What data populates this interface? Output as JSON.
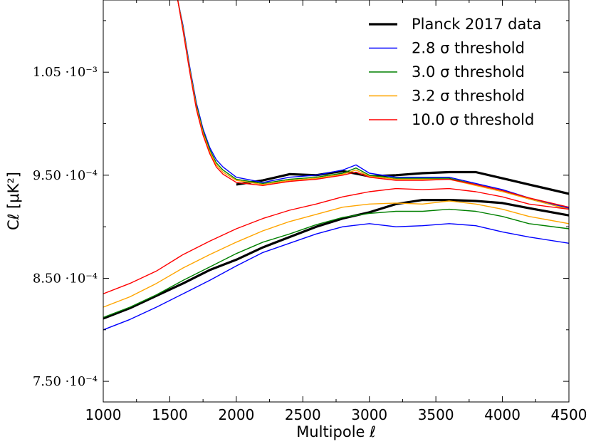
{
  "chart_data": {
    "type": "line",
    "xlabel": "Multipole ℓ",
    "ylabel": "Cℓ [μK²]",
    "xlim": [
      1000,
      4500
    ],
    "ylim": [
      0.00073,
      0.00112
    ],
    "xticks": [
      1000,
      1500,
      2000,
      2500,
      3000,
      3500,
      4000,
      4500
    ],
    "xtick_labels": [
      "1000",
      "1500",
      "2000",
      "2500",
      "3000",
      "3500",
      "4000",
      "4500"
    ],
    "yticks": [
      0.00075,
      0.00085,
      0.00095,
      0.00105
    ],
    "ytick_labels": [
      "7.50 ·10⁻⁴",
      "8.50 ·10⁻⁴",
      "9.50 ·10⁻⁴",
      "1.05 ·10⁻³"
    ],
    "legend_position": "top-right",
    "series": [
      {
        "name": "Planck 2017 data",
        "color": "#000000",
        "width": 3.2,
        "x": [
          2000,
          2200,
          2400,
          2600,
          2800,
          3000,
          3200,
          3400,
          3600,
          3800,
          4000,
          4200,
          4500
        ],
        "y": [
          0.000941,
          0.000945,
          0.000951,
          0.00095,
          0.000954,
          0.000949,
          0.00095,
          0.000952,
          0.000953,
          0.000953,
          0.000947,
          0.000941,
          0.000932
        ]
      },
      {
        "name": "",
        "color": "#000000",
        "width": 3.2,
        "x": [
          1000,
          1200,
          1400,
          1600,
          1800,
          2000,
          2200,
          2400,
          2600,
          2800,
          3000,
          3200,
          3400,
          3600,
          3800,
          4000,
          4200,
          4500
        ],
        "y": [
          0.000811,
          0.000821,
          0.000833,
          0.000845,
          0.000858,
          0.000868,
          0.00088,
          0.00089,
          0.0009,
          0.000908,
          0.000914,
          0.000922,
          0.000926,
          0.000926,
          0.000925,
          0.000923,
          0.000918,
          0.000911
        ]
      },
      {
        "name": "2.8 σ threshold",
        "color": "#0000ff",
        "width": 1.4,
        "x": [
          1560,
          1600,
          1650,
          1700,
          1750,
          1800,
          1850,
          1900,
          2000,
          2200,
          2400,
          2600,
          2800,
          2900,
          3000,
          3200,
          3400,
          3600,
          3800,
          4000,
          4200,
          4500
        ],
        "y": [
          0.00112,
          0.001095,
          0.001055,
          0.00102,
          0.000995,
          0.000977,
          0.000965,
          0.000958,
          0.000948,
          0.000943,
          0.000948,
          0.00095,
          0.000955,
          0.00096,
          0.000952,
          0.000948,
          0.000948,
          0.000948,
          0.000942,
          0.000936,
          0.000928,
          0.000918
        ]
      },
      {
        "name": "",
        "color": "#0000ff",
        "width": 1.4,
        "x": [
          1000,
          1200,
          1400,
          1600,
          1800,
          2000,
          2200,
          2400,
          2600,
          2800,
          3000,
          3200,
          3400,
          3600,
          3800,
          4000,
          4200,
          4500
        ],
        "y": [
          0.0008,
          0.00081,
          0.000822,
          0.000835,
          0.000848,
          0.000862,
          0.000875,
          0.000884,
          0.000893,
          0.0009,
          0.000903,
          0.0009,
          0.000901,
          0.000903,
          0.000901,
          0.000895,
          0.00089,
          0.000884
        ]
      },
      {
        "name": "3.0 σ threshold",
        "color": "#008000",
        "width": 1.4,
        "x": [
          1560,
          1600,
          1650,
          1700,
          1750,
          1800,
          1850,
          1900,
          2000,
          2200,
          2400,
          2600,
          2800,
          2900,
          3000,
          3200,
          3400,
          3600,
          3800,
          4000,
          4200,
          4500
        ],
        "y": [
          0.00112,
          0.001093,
          0.001053,
          0.001018,
          0.000993,
          0.000975,
          0.000962,
          0.000955,
          0.000946,
          0.000942,
          0.000946,
          0.000948,
          0.000952,
          0.000957,
          0.00095,
          0.000947,
          0.000947,
          0.000947,
          0.000941,
          0.000935,
          0.000927,
          0.000917
        ]
      },
      {
        "name": "",
        "color": "#008000",
        "width": 1.4,
        "x": [
          1000,
          1200,
          1400,
          1600,
          1800,
          2000,
          2200,
          2400,
          2600,
          2800,
          3000,
          3200,
          3400,
          3600,
          3800,
          4000,
          4200,
          4500
        ],
        "y": [
          0.000812,
          0.000822,
          0.000834,
          0.000848,
          0.000861,
          0.000874,
          0.000885,
          0.000893,
          0.000902,
          0.000909,
          0.000913,
          0.000915,
          0.000915,
          0.000917,
          0.000915,
          0.00091,
          0.000903,
          0.000898
        ]
      },
      {
        "name": "3.2 σ threshold",
        "color": "#ffa500",
        "width": 1.4,
        "x": [
          1560,
          1600,
          1650,
          1700,
          1750,
          1800,
          1850,
          1900,
          2000,
          2200,
          2400,
          2600,
          2800,
          2900,
          3000,
          3200,
          3400,
          3600,
          3800,
          4000,
          4200,
          4500
        ],
        "y": [
          0.00112,
          0.001092,
          0.001052,
          0.001016,
          0.000991,
          0.000973,
          0.00096,
          0.000953,
          0.000945,
          0.000941,
          0.000945,
          0.000947,
          0.000951,
          0.000955,
          0.000949,
          0.000946,
          0.000946,
          0.000946,
          0.00094,
          0.000934,
          0.000927,
          0.000917
        ]
      },
      {
        "name": "",
        "color": "#ffa500",
        "width": 1.4,
        "x": [
          1000,
          1200,
          1400,
          1600,
          1800,
          2000,
          2200,
          2400,
          2600,
          2800,
          3000,
          3200,
          3400,
          3600,
          3800,
          4000,
          4200,
          4500
        ],
        "y": [
          0.000822,
          0.000832,
          0.000845,
          0.00086,
          0.000873,
          0.000885,
          0.000896,
          0.000905,
          0.000912,
          0.000919,
          0.000922,
          0.000923,
          0.000922,
          0.000925,
          0.000922,
          0.000917,
          0.00091,
          0.000903
        ]
      },
      {
        "name": "10.0 σ threshold",
        "color": "#ff0000",
        "width": 1.4,
        "x": [
          1560,
          1600,
          1650,
          1700,
          1750,
          1800,
          1850,
          1900,
          2000,
          2200,
          2400,
          2600,
          2800,
          2900,
          3000,
          3200,
          3400,
          3600,
          3800,
          4000,
          4200,
          4500
        ],
        "y": [
          0.00112,
          0.00109,
          0.00105,
          0.001014,
          0.000989,
          0.000971,
          0.000958,
          0.000951,
          0.000943,
          0.00094,
          0.000944,
          0.000946,
          0.00095,
          0.000953,
          0.000948,
          0.000945,
          0.000945,
          0.000946,
          0.000941,
          0.000935,
          0.000928,
          0.000919
        ]
      },
      {
        "name": "",
        "color": "#ff0000",
        "width": 1.4,
        "x": [
          1000,
          1200,
          1400,
          1600,
          1800,
          2000,
          2200,
          2400,
          2600,
          2800,
          3000,
          3200,
          3400,
          3600,
          3800,
          4000,
          4200,
          4500
        ],
        "y": [
          0.000835,
          0.000845,
          0.000857,
          0.000873,
          0.000886,
          0.000898,
          0.000908,
          0.000916,
          0.000922,
          0.000929,
          0.000934,
          0.000937,
          0.000936,
          0.000937,
          0.000934,
          0.000929,
          0.000922,
          0.000917
        ]
      }
    ]
  }
}
